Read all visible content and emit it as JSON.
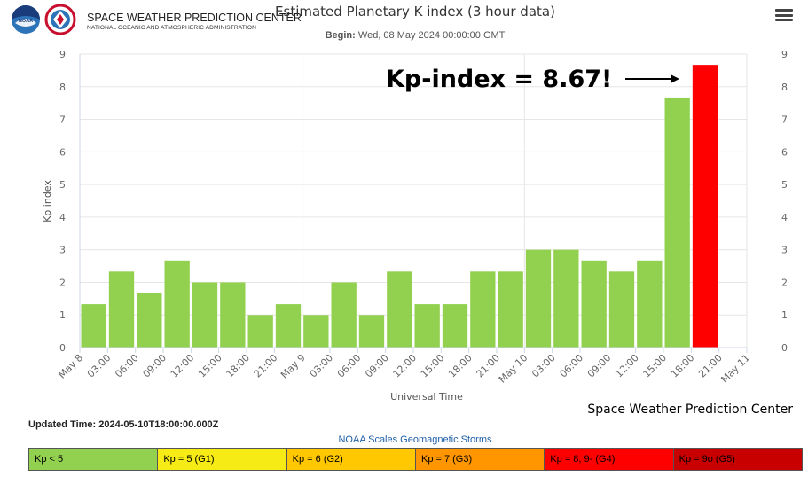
{
  "header": {
    "org_name": "SPACE WEATHER PREDICTION CENTER",
    "org_subtitle": "NATIONAL OCEANIC AND ATMOSPHERIC ADMINISTRATION",
    "noaa_logo_text": "NOAA",
    "nws_logo_text": "NATIONAL WEATHER SERVICE",
    "menu_icon": "hamburger-menu-icon"
  },
  "chart_data": {
    "type": "bar",
    "title": "Estimated Planetary K index (3 hour data)",
    "subtitle_label": "Begin:",
    "subtitle_value": "Wed, 08 May 2024 00:00:00 GMT",
    "xlabel": "Universal Time",
    "ylabel": "Kp index",
    "ylim": [
      0,
      9
    ],
    "yticks": [
      "0",
      "1",
      "2",
      "3",
      "4",
      "5",
      "6",
      "7",
      "8",
      "9"
    ],
    "xticks": [
      "May 8",
      "03:00",
      "06:00",
      "09:00",
      "12:00",
      "15:00",
      "18:00",
      "21:00",
      "May 9",
      "03:00",
      "06:00",
      "09:00",
      "12:00",
      "15:00",
      "18:00",
      "21:00",
      "May 10",
      "03:00",
      "06:00",
      "09:00",
      "12:00",
      "15:00",
      "18:00",
      "21:00",
      "May 11"
    ],
    "categories": [
      "2024-05-08 00:00",
      "2024-05-08 03:00",
      "2024-05-08 06:00",
      "2024-05-08 09:00",
      "2024-05-08 12:00",
      "2024-05-08 15:00",
      "2024-05-08 18:00",
      "2024-05-08 21:00",
      "2024-05-09 00:00",
      "2024-05-09 03:00",
      "2024-05-09 06:00",
      "2024-05-09 09:00",
      "2024-05-09 12:00",
      "2024-05-09 15:00",
      "2024-05-09 18:00",
      "2024-05-09 21:00",
      "2024-05-10 00:00",
      "2024-05-10 03:00",
      "2024-05-10 06:00",
      "2024-05-10 09:00",
      "2024-05-10 12:00",
      "2024-05-10 15:00",
      "2024-05-10 18:00"
    ],
    "values": [
      1.33,
      2.33,
      1.67,
      2.67,
      2.0,
      2.0,
      1.0,
      1.33,
      1.0,
      2.0,
      1.0,
      2.33,
      1.33,
      1.33,
      2.33,
      2.33,
      3.0,
      3.0,
      2.67,
      2.33,
      2.67,
      7.67,
      8.67
    ],
    "bar_colors": {
      "below_g1": "#92d050",
      "g4": "#ff0000"
    },
    "grid": true,
    "annotation": "Kp-index = 8.67!",
    "credit": "Space Weather Prediction Center"
  },
  "updated_time": "Updated Time: 2024-05-10T18:00:00.000Z",
  "scale": {
    "title": "NOAA Scales Geomagnetic Storms",
    "cells": [
      {
        "label": "Kp < 5",
        "color": "#92d050"
      },
      {
        "label": "Kp = 5 (G1)",
        "color": "#f6eb14"
      },
      {
        "label": "Kp = 6 (G2)",
        "color": "#ffc800"
      },
      {
        "label": "Kp = 7 (G3)",
        "color": "#ff9600"
      },
      {
        "label": "Kp = 8, 9- (G4)",
        "color": "#ff0000"
      },
      {
        "label": "Kp = 9o (G5)",
        "color": "#c80000"
      }
    ]
  }
}
